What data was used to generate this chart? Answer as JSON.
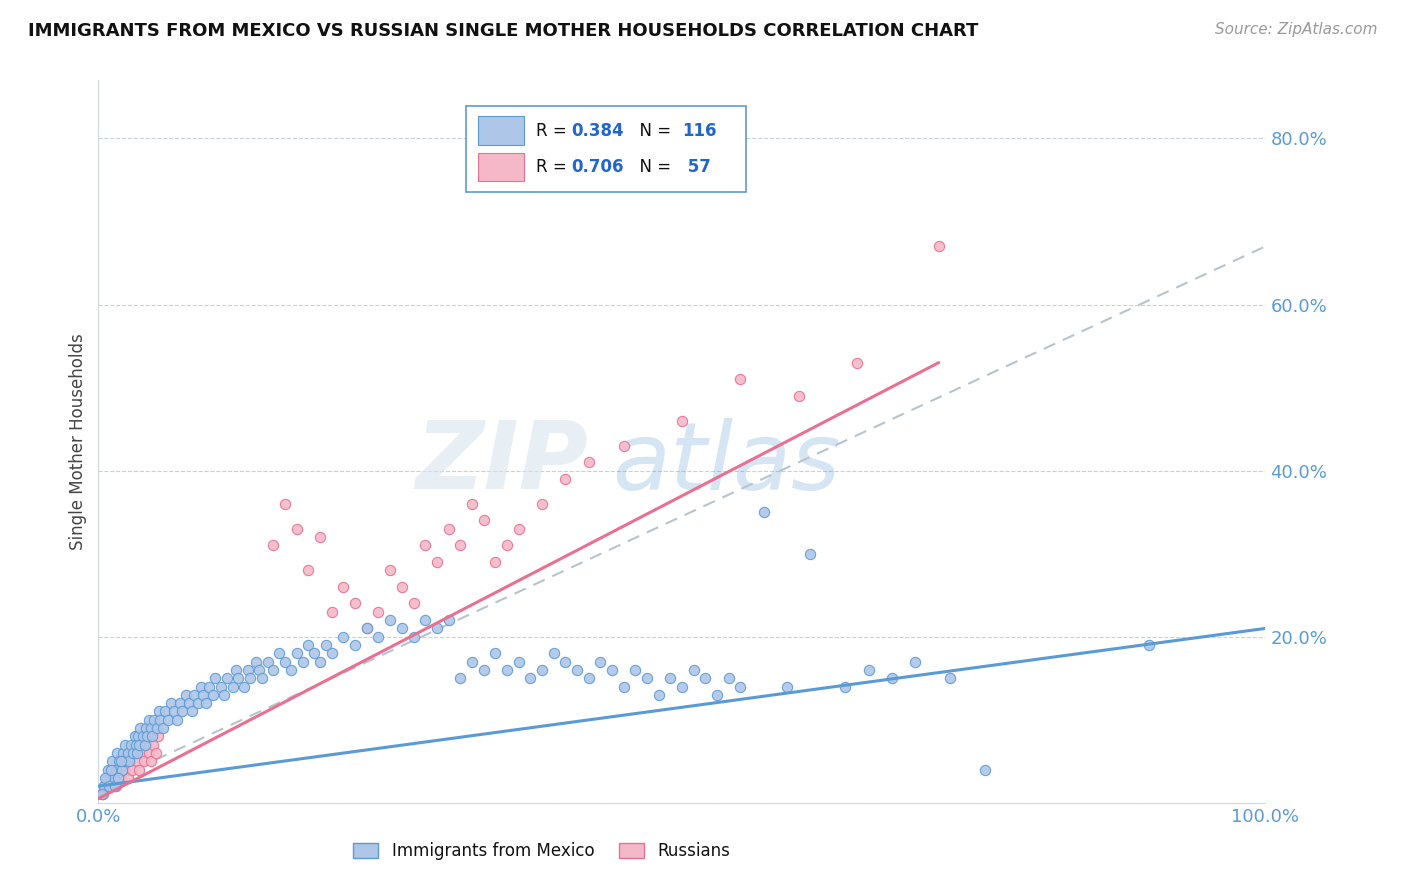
{
  "title": "IMMIGRANTS FROM MEXICO VS RUSSIAN SINGLE MOTHER HOUSEHOLDS CORRELATION CHART",
  "source": "Source: ZipAtlas.com",
  "ylabel": "Single Mother Households",
  "legend_label1": "Immigrants from Mexico",
  "legend_label2": "Russians",
  "blue_fill_color": "#aec6e8",
  "blue_edge_color": "#5b9bd5",
  "pink_fill_color": "#f4b8c8",
  "pink_edge_color": "#e87090",
  "watermark_zip": "ZIP",
  "watermark_atlas": "atlas",
  "watermark_color_zip": "#d0dce8",
  "watermark_color_atlas": "#5b9bd5",
  "blue_trend": [
    0.0,
    0.02,
    1.0,
    0.21
  ],
  "pink_trend": [
    0.0,
    0.005,
    0.72,
    0.53
  ],
  "gray_trend": [
    0.0,
    0.02,
    1.0,
    0.67
  ],
  "xlim": [
    0.0,
    1.0
  ],
  "ylim": [
    0.0,
    0.87
  ],
  "ytick_vals": [
    0.0,
    0.2,
    0.4,
    0.6,
    0.8
  ],
  "ytick_labels": [
    "",
    "20.0%",
    "40.0%",
    "60.0%",
    "80.0%"
  ],
  "xtick_vals": [
    0.0,
    1.0
  ],
  "xtick_labels": [
    "0.0%",
    "100.0%"
  ],
  "blue_points": [
    [
      0.005,
      0.02
    ],
    [
      0.008,
      0.04
    ],
    [
      0.01,
      0.03
    ],
    [
      0.012,
      0.05
    ],
    [
      0.013,
      0.03
    ],
    [
      0.015,
      0.04
    ],
    [
      0.016,
      0.06
    ],
    [
      0.018,
      0.05
    ],
    [
      0.02,
      0.04
    ],
    [
      0.021,
      0.06
    ],
    [
      0.022,
      0.05
    ],
    [
      0.023,
      0.07
    ],
    [
      0.025,
      0.06
    ],
    [
      0.026,
      0.05
    ],
    [
      0.028,
      0.07
    ],
    [
      0.03,
      0.06
    ],
    [
      0.031,
      0.08
    ],
    [
      0.032,
      0.07
    ],
    [
      0.033,
      0.06
    ],
    [
      0.034,
      0.08
    ],
    [
      0.035,
      0.07
    ],
    [
      0.036,
      0.09
    ],
    [
      0.038,
      0.08
    ],
    [
      0.04,
      0.07
    ],
    [
      0.041,
      0.09
    ],
    [
      0.042,
      0.08
    ],
    [
      0.043,
      0.1
    ],
    [
      0.045,
      0.09
    ],
    [
      0.046,
      0.08
    ],
    [
      0.048,
      0.1
    ],
    [
      0.05,
      0.09
    ],
    [
      0.052,
      0.11
    ],
    [
      0.053,
      0.1
    ],
    [
      0.055,
      0.09
    ],
    [
      0.057,
      0.11
    ],
    [
      0.06,
      0.1
    ],
    [
      0.062,
      0.12
    ],
    [
      0.065,
      0.11
    ],
    [
      0.067,
      0.1
    ],
    [
      0.07,
      0.12
    ],
    [
      0.072,
      0.11
    ],
    [
      0.075,
      0.13
    ],
    [
      0.078,
      0.12
    ],
    [
      0.08,
      0.11
    ],
    [
      0.082,
      0.13
    ],
    [
      0.085,
      0.12
    ],
    [
      0.088,
      0.14
    ],
    [
      0.09,
      0.13
    ],
    [
      0.092,
      0.12
    ],
    [
      0.095,
      0.14
    ],
    [
      0.098,
      0.13
    ],
    [
      0.1,
      0.15
    ],
    [
      0.105,
      0.14
    ],
    [
      0.108,
      0.13
    ],
    [
      0.11,
      0.15
    ],
    [
      0.115,
      0.14
    ],
    [
      0.118,
      0.16
    ],
    [
      0.12,
      0.15
    ],
    [
      0.125,
      0.14
    ],
    [
      0.128,
      0.16
    ],
    [
      0.13,
      0.15
    ],
    [
      0.135,
      0.17
    ],
    [
      0.138,
      0.16
    ],
    [
      0.14,
      0.15
    ],
    [
      0.145,
      0.17
    ],
    [
      0.15,
      0.16
    ],
    [
      0.155,
      0.18
    ],
    [
      0.16,
      0.17
    ],
    [
      0.165,
      0.16
    ],
    [
      0.17,
      0.18
    ],
    [
      0.175,
      0.17
    ],
    [
      0.18,
      0.19
    ],
    [
      0.185,
      0.18
    ],
    [
      0.19,
      0.17
    ],
    [
      0.195,
      0.19
    ],
    [
      0.2,
      0.18
    ],
    [
      0.21,
      0.2
    ],
    [
      0.22,
      0.19
    ],
    [
      0.23,
      0.21
    ],
    [
      0.24,
      0.2
    ],
    [
      0.25,
      0.22
    ],
    [
      0.26,
      0.21
    ],
    [
      0.27,
      0.2
    ],
    [
      0.28,
      0.22
    ],
    [
      0.29,
      0.21
    ],
    [
      0.3,
      0.22
    ],
    [
      0.31,
      0.15
    ],
    [
      0.32,
      0.17
    ],
    [
      0.33,
      0.16
    ],
    [
      0.34,
      0.18
    ],
    [
      0.35,
      0.16
    ],
    [
      0.36,
      0.17
    ],
    [
      0.37,
      0.15
    ],
    [
      0.38,
      0.16
    ],
    [
      0.39,
      0.18
    ],
    [
      0.4,
      0.17
    ],
    [
      0.41,
      0.16
    ],
    [
      0.42,
      0.15
    ],
    [
      0.43,
      0.17
    ],
    [
      0.44,
      0.16
    ],
    [
      0.45,
      0.14
    ],
    [
      0.46,
      0.16
    ],
    [
      0.47,
      0.15
    ],
    [
      0.48,
      0.13
    ],
    [
      0.49,
      0.15
    ],
    [
      0.5,
      0.14
    ],
    [
      0.51,
      0.16
    ],
    [
      0.52,
      0.15
    ],
    [
      0.53,
      0.13
    ],
    [
      0.54,
      0.15
    ],
    [
      0.55,
      0.14
    ],
    [
      0.57,
      0.35
    ],
    [
      0.59,
      0.14
    ],
    [
      0.61,
      0.3
    ],
    [
      0.64,
      0.14
    ],
    [
      0.66,
      0.16
    ],
    [
      0.68,
      0.15
    ],
    [
      0.7,
      0.17
    ],
    [
      0.73,
      0.15
    ],
    [
      0.76,
      0.04
    ],
    [
      0.9,
      0.19
    ],
    [
      0.003,
      0.01
    ],
    [
      0.006,
      0.03
    ],
    [
      0.009,
      0.02
    ],
    [
      0.011,
      0.04
    ],
    [
      0.014,
      0.02
    ],
    [
      0.017,
      0.03
    ],
    [
      0.019,
      0.05
    ]
  ],
  "pink_points": [
    [
      0.003,
      0.01
    ],
    [
      0.005,
      0.02
    ],
    [
      0.007,
      0.03
    ],
    [
      0.009,
      0.02
    ],
    [
      0.011,
      0.04
    ],
    [
      0.013,
      0.03
    ],
    [
      0.015,
      0.02
    ],
    [
      0.017,
      0.04
    ],
    [
      0.019,
      0.03
    ],
    [
      0.021,
      0.05
    ],
    [
      0.023,
      0.04
    ],
    [
      0.025,
      0.03
    ],
    [
      0.027,
      0.05
    ],
    [
      0.029,
      0.04
    ],
    [
      0.031,
      0.06
    ],
    [
      0.033,
      0.05
    ],
    [
      0.035,
      0.04
    ],
    [
      0.037,
      0.06
    ],
    [
      0.039,
      0.05
    ],
    [
      0.041,
      0.07
    ],
    [
      0.043,
      0.06
    ],
    [
      0.045,
      0.05
    ],
    [
      0.047,
      0.07
    ],
    [
      0.049,
      0.06
    ],
    [
      0.051,
      0.08
    ],
    [
      0.15,
      0.31
    ],
    [
      0.16,
      0.36
    ],
    [
      0.17,
      0.33
    ],
    [
      0.18,
      0.28
    ],
    [
      0.19,
      0.32
    ],
    [
      0.2,
      0.23
    ],
    [
      0.21,
      0.26
    ],
    [
      0.22,
      0.24
    ],
    [
      0.23,
      0.21
    ],
    [
      0.24,
      0.23
    ],
    [
      0.25,
      0.28
    ],
    [
      0.26,
      0.26
    ],
    [
      0.27,
      0.24
    ],
    [
      0.28,
      0.31
    ],
    [
      0.29,
      0.29
    ],
    [
      0.3,
      0.33
    ],
    [
      0.31,
      0.31
    ],
    [
      0.32,
      0.36
    ],
    [
      0.33,
      0.34
    ],
    [
      0.34,
      0.29
    ],
    [
      0.35,
      0.31
    ],
    [
      0.36,
      0.33
    ],
    [
      0.38,
      0.36
    ],
    [
      0.4,
      0.39
    ],
    [
      0.42,
      0.41
    ],
    [
      0.45,
      0.43
    ],
    [
      0.5,
      0.46
    ],
    [
      0.55,
      0.51
    ],
    [
      0.6,
      0.49
    ],
    [
      0.65,
      0.53
    ],
    [
      0.72,
      0.67
    ],
    [
      0.004,
      0.01
    ]
  ]
}
